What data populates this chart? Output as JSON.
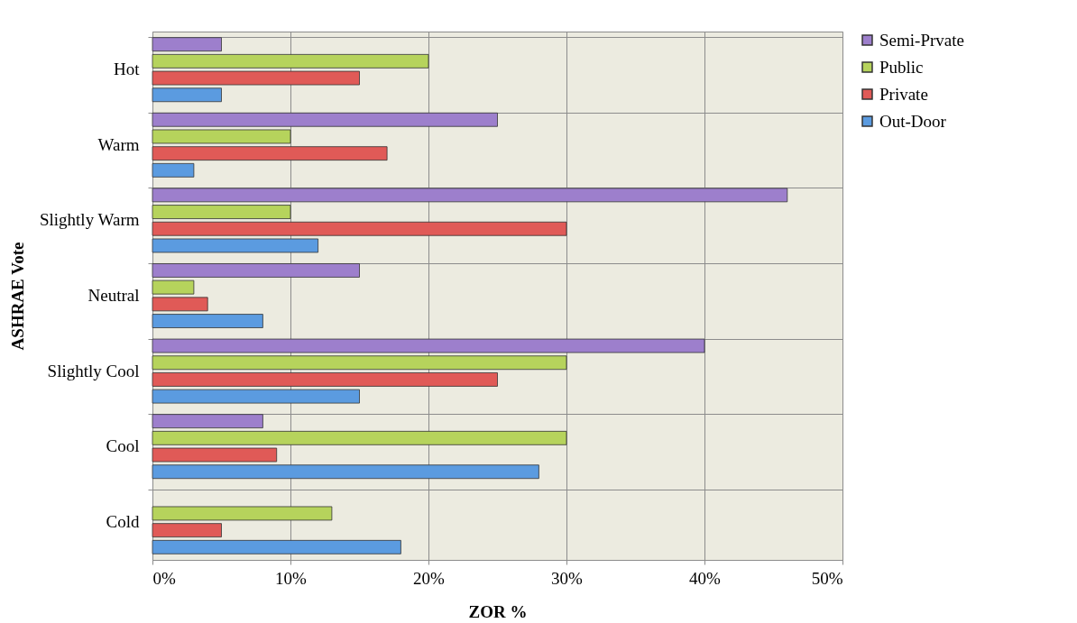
{
  "chart_data": {
    "type": "bar",
    "orientation": "horizontal",
    "xlabel": "ZOR %",
    "ylabel": "ASHRAE Vote",
    "categories": [
      "Hot",
      "Warm",
      "Slightly Warm",
      "Neutral",
      "Slightly Cool",
      "Cool",
      "Cold"
    ],
    "series": [
      {
        "name": "Out-Door",
        "color": "#5b9be0",
        "values": [
          5,
          3,
          12,
          8,
          15,
          28,
          18
        ]
      },
      {
        "name": "Private",
        "color": "#e05a57",
        "values": [
          15,
          17,
          30,
          4,
          25,
          9,
          5
        ]
      },
      {
        "name": "Public",
        "color": "#b6d35c",
        "values": [
          20,
          10,
          10,
          3,
          30,
          30,
          13
        ]
      },
      {
        "name": "Semi-Prvate",
        "color": "#9d7fcc",
        "values": [
          5,
          25,
          46,
          15,
          40,
          8,
          null
        ]
      }
    ],
    "xlim": [
      0,
      50
    ],
    "xticks": [
      {
        "value": 0,
        "label": "0%"
      },
      {
        "value": 10,
        "label": "10%"
      },
      {
        "value": 20,
        "label": "20%"
      },
      {
        "value": 30,
        "label": "30%"
      },
      {
        "value": 40,
        "label": "40%"
      },
      {
        "value": 50,
        "label": "50%"
      }
    ],
    "grid": true,
    "legend": "right"
  }
}
